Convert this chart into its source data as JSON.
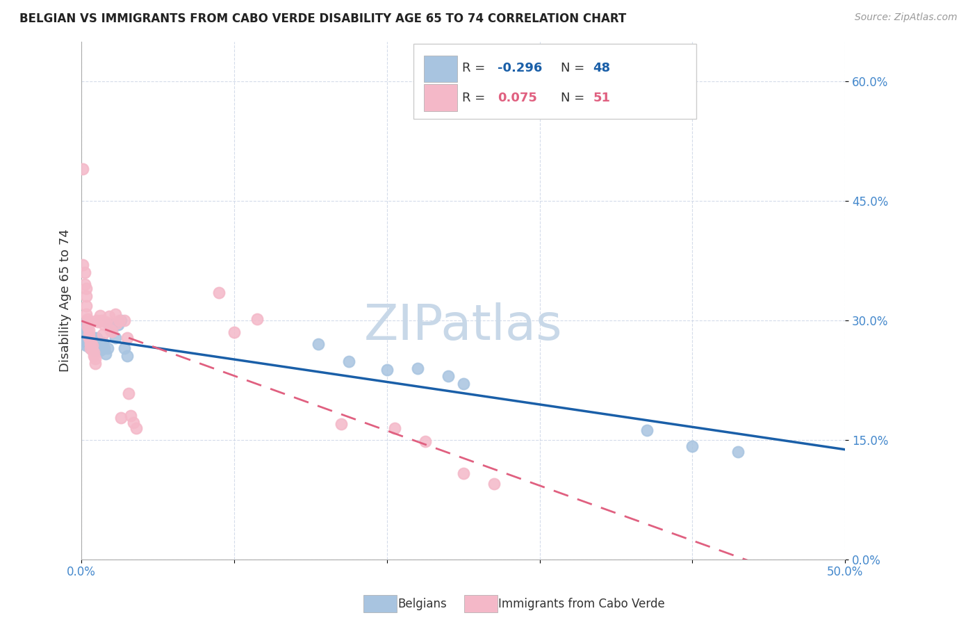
{
  "title": "BELGIAN VS IMMIGRANTS FROM CABO VERDE DISABILITY AGE 65 TO 74 CORRELATION CHART",
  "source": "Source: ZipAtlas.com",
  "ylabel": "Disability Age 65 to 74",
  "xlim": [
    0.0,
    0.5
  ],
  "ylim": [
    0.0,
    0.65
  ],
  "x_ticks": [
    0.0,
    0.1,
    0.2,
    0.3,
    0.4,
    0.5
  ],
  "x_tick_labels": [
    "0.0%",
    "",
    "",
    "",
    "",
    "50.0%"
  ],
  "y_ticks": [
    0.0,
    0.15,
    0.3,
    0.45,
    0.6
  ],
  "y_tick_labels": [
    "0.0%",
    "15.0%",
    "30.0%",
    "45.0%",
    "60.0%"
  ],
  "belgians_x": [
    0.001,
    0.001,
    0.002,
    0.002,
    0.003,
    0.003,
    0.003,
    0.004,
    0.004,
    0.004,
    0.005,
    0.005,
    0.005,
    0.006,
    0.006,
    0.006,
    0.007,
    0.007,
    0.008,
    0.008,
    0.008,
    0.009,
    0.009,
    0.01,
    0.01,
    0.011,
    0.012,
    0.013,
    0.014,
    0.015,
    0.016,
    0.017,
    0.018,
    0.02,
    0.022,
    0.024,
    0.026,
    0.028,
    0.03,
    0.155,
    0.175,
    0.2,
    0.22,
    0.24,
    0.25,
    0.37,
    0.4,
    0.43
  ],
  "belgians_y": [
    0.295,
    0.28,
    0.29,
    0.275,
    0.29,
    0.28,
    0.268,
    0.285,
    0.275,
    0.27,
    0.28,
    0.272,
    0.268,
    0.276,
    0.27,
    0.265,
    0.275,
    0.268,
    0.278,
    0.272,
    0.265,
    0.27,
    0.262,
    0.278,
    0.268,
    0.265,
    0.262,
    0.268,
    0.272,
    0.265,
    0.258,
    0.265,
    0.295,
    0.295,
    0.278,
    0.295,
    0.3,
    0.265,
    0.255,
    0.27,
    0.248,
    0.238,
    0.24,
    0.23,
    0.22,
    0.162,
    0.142,
    0.135
  ],
  "cabo_verde_x": [
    0.001,
    0.001,
    0.002,
    0.002,
    0.003,
    0.003,
    0.003,
    0.003,
    0.004,
    0.004,
    0.004,
    0.005,
    0.005,
    0.005,
    0.006,
    0.006,
    0.006,
    0.007,
    0.007,
    0.008,
    0.008,
    0.009,
    0.009,
    0.01,
    0.011,
    0.012,
    0.013,
    0.014,
    0.015,
    0.016,
    0.018,
    0.019,
    0.02,
    0.022,
    0.023,
    0.025,
    0.026,
    0.028,
    0.03,
    0.031,
    0.032,
    0.034,
    0.036,
    0.09,
    0.1,
    0.115,
    0.17,
    0.205,
    0.225,
    0.25,
    0.27
  ],
  "cabo_verde_y": [
    0.49,
    0.37,
    0.36,
    0.345,
    0.34,
    0.33,
    0.318,
    0.308,
    0.302,
    0.298,
    0.292,
    0.288,
    0.282,
    0.278,
    0.274,
    0.27,
    0.265,
    0.268,
    0.262,
    0.26,
    0.255,
    0.252,
    0.246,
    0.3,
    0.298,
    0.306,
    0.3,
    0.282,
    0.295,
    0.298,
    0.305,
    0.288,
    0.286,
    0.308,
    0.296,
    0.3,
    0.178,
    0.3,
    0.278,
    0.208,
    0.18,
    0.172,
    0.165,
    0.335,
    0.285,
    0.302,
    0.17,
    0.165,
    0.148,
    0.108,
    0.095
  ],
  "belgians_R": -0.296,
  "belgians_N": 48,
  "cabo_verde_R": 0.075,
  "cabo_verde_N": 51,
  "blue_color": "#a8c4e0",
  "pink_color": "#f4b8c8",
  "blue_line_color": "#1a5fa8",
  "pink_line_color": "#e06080",
  "background_color": "#ffffff",
  "watermark": "ZIPatlas",
  "watermark_color": "#c8d8e8",
  "legend_blue_R": "-0.296",
  "legend_pink_R": "0.075",
  "legend_blue_N": "48",
  "legend_pink_N": "51"
}
